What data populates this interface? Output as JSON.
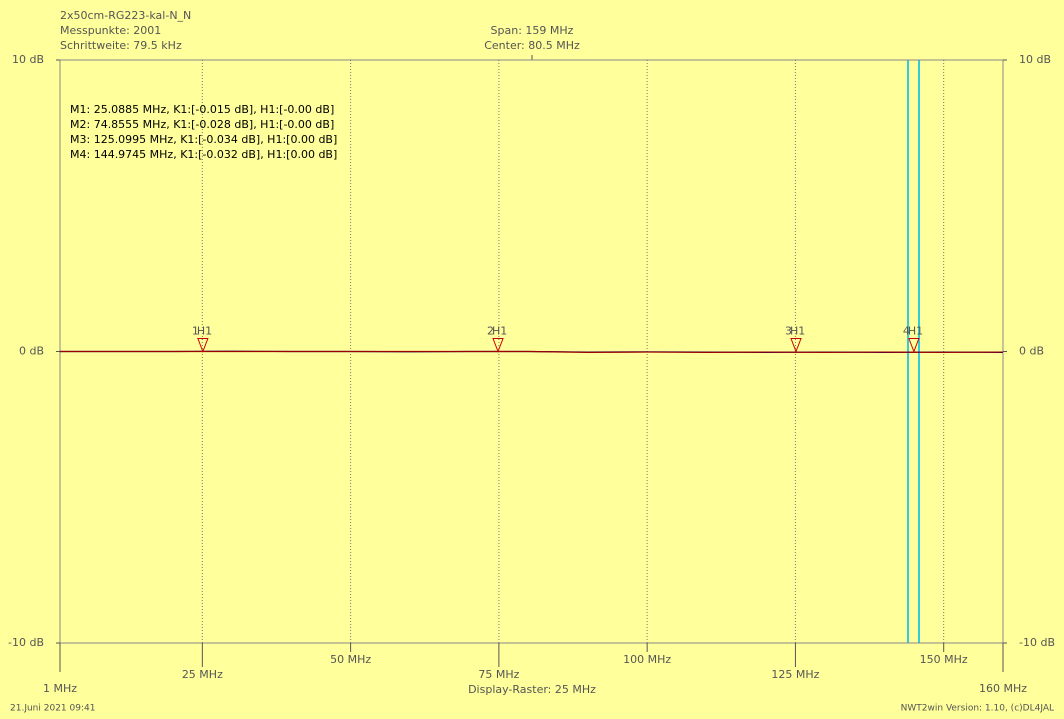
{
  "chart_data": {
    "type": "line",
    "title": "2x50cm-RG223-kal-N_N",
    "info": [
      "Messpunkte: 2001",
      "Schrittweite: 79.5 kHz"
    ],
    "span": "Span: 159 MHz",
    "center": "Center: 80.5 MHz",
    "raster": "Display-Raster: 25 MHz",
    "date": "21.Juni 2021 09:41",
    "version": "NWT2win Version: 1.10, (c)DL4JAL",
    "xlim": [
      1,
      160
    ],
    "ylim": [
      -10,
      10
    ],
    "xticks": [
      {
        "value": 1,
        "label": "1 MHz"
      },
      {
        "value": 25,
        "label": "25 MHz"
      },
      {
        "value": 50,
        "label": "50 MHz"
      },
      {
        "value": 75,
        "label": "75 MHz"
      },
      {
        "value": 100,
        "label": "100 MHz"
      },
      {
        "value": 125,
        "label": "125 MHz"
      },
      {
        "value": 150,
        "label": "150 MHz"
      },
      {
        "value": 160,
        "label": "160 MHz"
      }
    ],
    "yticks": [
      {
        "value": 10,
        "label": "10 dB"
      },
      {
        "value": 0,
        "label": "0 dB"
      },
      {
        "value": -10,
        "label": "-10 dB"
      }
    ],
    "grid": true,
    "x": [
      1,
      10,
      20,
      30,
      40,
      50,
      60,
      70,
      80,
      90,
      100,
      110,
      120,
      130,
      140,
      150,
      160
    ],
    "series": [
      {
        "color": "#000080",
        "values": [
          0,
          0,
          0,
          0.01,
          0,
          0,
          -0.01,
          0,
          0,
          -0.02,
          -0.01,
          -0.02,
          -0.03,
          -0.02,
          -0.03,
          -0.02,
          -0.03
        ]
      },
      {
        "color": "#9b0000",
        "values": [
          0,
          0,
          0,
          0,
          0,
          0,
          0,
          0,
          0,
          -0.03,
          -0.02,
          -0.03,
          -0.02,
          -0.03,
          -0.02,
          -0.03,
          -0.02
        ]
      }
    ],
    "markers": [
      {
        "x": 25.0885,
        "y": 0,
        "label": "1",
        "trace": "H1",
        "text": "M1: 25.0885 MHz, K1:[-0.015 dB], H1:[-0.00 dB]"
      },
      {
        "x": 74.8555,
        "y": 0,
        "label": "2",
        "trace": "H1",
        "text": "M2: 74.8555 MHz, K1:[-0.028 dB], H1:[-0.00 dB]"
      },
      {
        "x": 125.0995,
        "y": 0,
        "label": "3",
        "trace": "H1",
        "text": "M3: 125.0995 MHz, K1:[-0.034 dB], H1:[0.00 dB]"
      },
      {
        "x": 144.9745,
        "y": 0,
        "label": "4",
        "trace": "H1",
        "text": "M4: 144.9745 MHz, K1:[-0.032 dB], H1:[0.00 dB]"
      }
    ]
  }
}
